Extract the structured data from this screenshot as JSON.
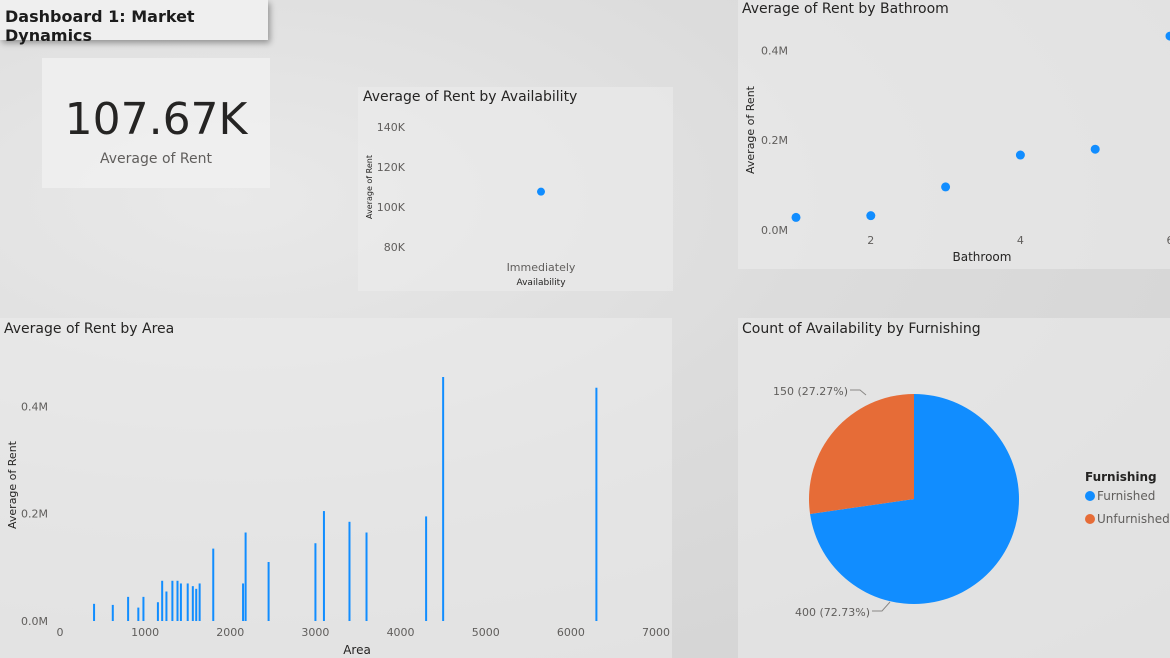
{
  "dashboard_title": "Dashboard 1: Market Dynamics",
  "kpi": {
    "value": "107.67K",
    "label": "Average of Rent"
  },
  "colors": {
    "blue": "#118dff",
    "orange": "#e66c37",
    "axis_text": "#605e5c",
    "title_text": "#252423"
  },
  "chart_data": [
    {
      "id": "availability",
      "type": "scatter",
      "title": "Average of Rent by Availability",
      "xlabel": "Availability",
      "ylabel": "Average of Rent",
      "categories": [
        "Immediately"
      ],
      "values": [
        107670
      ],
      "ylim": [
        72000,
        148000
      ],
      "yticks": [
        {
          "v": 80000,
          "label": "80K"
        },
        {
          "v": 100000,
          "label": "100K"
        },
        {
          "v": 120000,
          "label": "120K"
        },
        {
          "v": 140000,
          "label": "140K"
        }
      ]
    },
    {
      "id": "bathroom",
      "type": "scatter",
      "title": "Average of Rent by Bathroom",
      "xlabel": "Bathroom",
      "ylabel": "Average of Rent",
      "x": [
        1,
        2,
        3,
        4,
        5,
        6
      ],
      "y": [
        28000,
        32000,
        96000,
        167000,
        180000,
        432000
      ],
      "xlim": [
        1,
        6
      ],
      "ylim": [
        0,
        450000
      ],
      "xticks": [
        {
          "v": 2,
          "label": "2"
        },
        {
          "v": 4,
          "label": "4"
        },
        {
          "v": 6,
          "label": "6"
        }
      ],
      "yticks": [
        {
          "v": 0,
          "label": "0.0M"
        },
        {
          "v": 200000,
          "label": "0.2M"
        },
        {
          "v": 400000,
          "label": "0.4M"
        }
      ]
    },
    {
      "id": "area",
      "type": "bar",
      "title": "Average of Rent by Area",
      "xlabel": "Area",
      "ylabel": "Average of Rent",
      "x": [
        400,
        620,
        800,
        920,
        980,
        1150,
        1200,
        1250,
        1320,
        1380,
        1420,
        1500,
        1560,
        1600,
        1640,
        1800,
        2150,
        2180,
        2450,
        3000,
        3100,
        3400,
        3600,
        4300,
        4500,
        6300
      ],
      "y": [
        32000,
        30000,
        45000,
        25000,
        45000,
        35000,
        75000,
        55000,
        75000,
        75000,
        70000,
        70000,
        65000,
        60000,
        70000,
        135000,
        70000,
        165000,
        110000,
        145000,
        205000,
        185000,
        165000,
        195000,
        455000,
        435000
      ],
      "xlim": [
        0,
        7000
      ],
      "ylim": [
        0,
        455000
      ],
      "xticks": [
        {
          "v": 0,
          "label": "0"
        },
        {
          "v": 1000,
          "label": "1000"
        },
        {
          "v": 2000,
          "label": "2000"
        },
        {
          "v": 3000,
          "label": "3000"
        },
        {
          "v": 4000,
          "label": "4000"
        },
        {
          "v": 5000,
          "label": "5000"
        },
        {
          "v": 6000,
          "label": "6000"
        },
        {
          "v": 7000,
          "label": "7000"
        }
      ],
      "yticks": [
        {
          "v": 0,
          "label": "0.0M"
        },
        {
          "v": 200000,
          "label": "0.2M"
        },
        {
          "v": 400000,
          "label": "0.4M"
        }
      ]
    },
    {
      "id": "furnishing",
      "type": "pie",
      "title": "Count of Availability by Furnishing",
      "legend_title": "Furnishing",
      "legend_position": "right",
      "slices": [
        {
          "name": "Furnished",
          "value": 400,
          "label": "400 (72.73%)",
          "color": "#118dff"
        },
        {
          "name": "Unfurnished",
          "value": 150,
          "label": "150 (27.27%)",
          "color": "#e66c37"
        }
      ]
    }
  ]
}
